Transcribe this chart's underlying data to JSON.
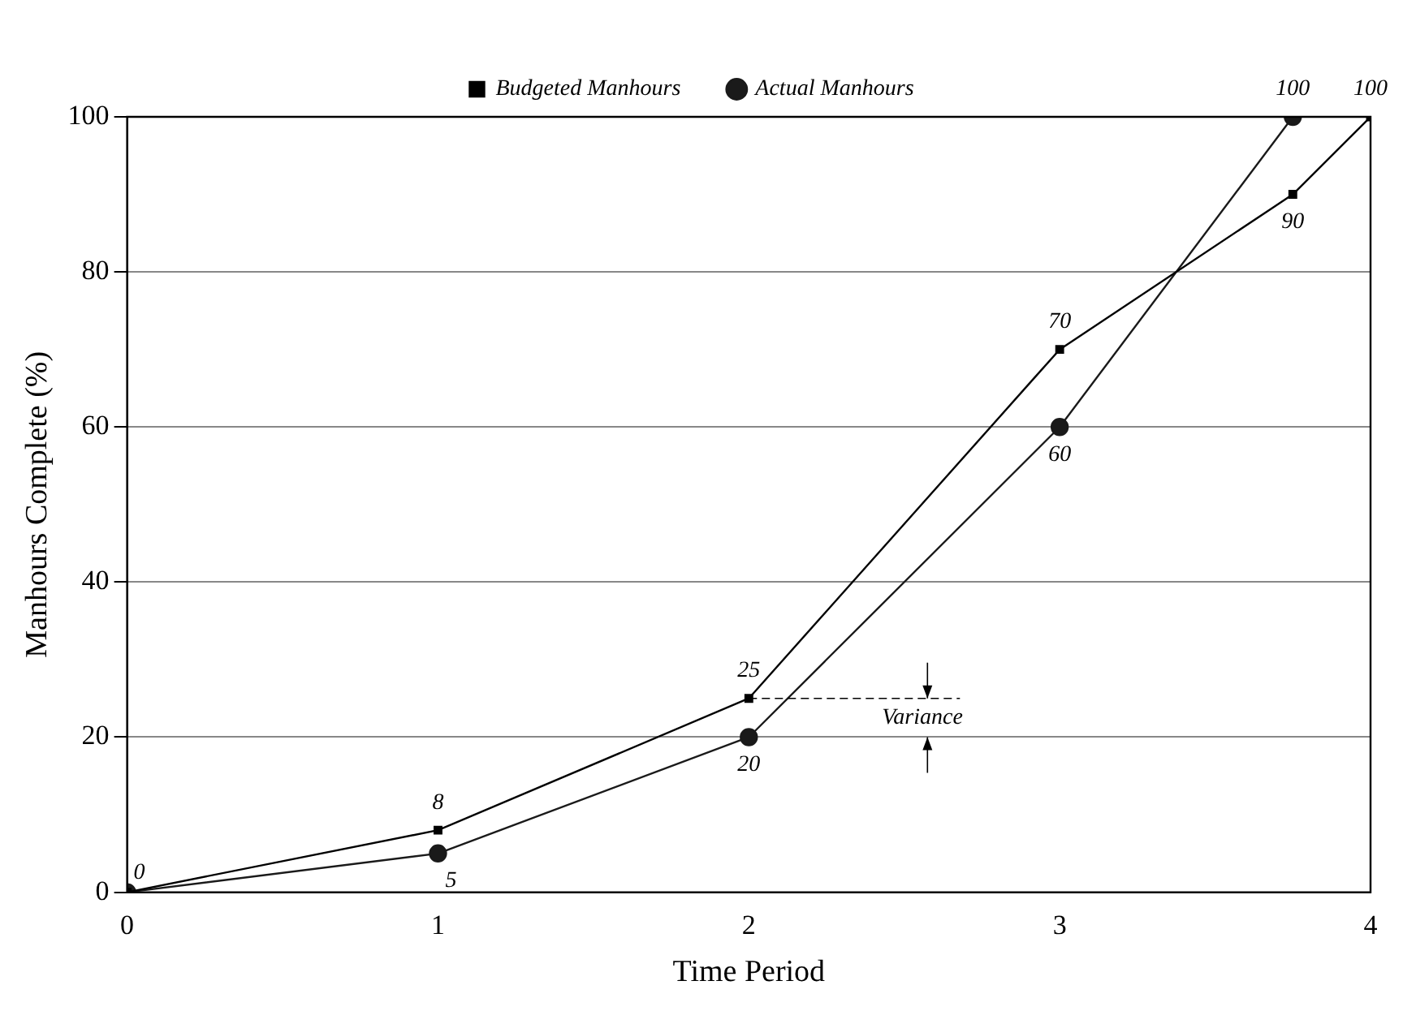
{
  "chart_data": {
    "type": "line",
    "xlabel": "Time Period",
    "ylabel": "Manhours Complete (%)",
    "series": [
      {
        "name": "Budgeted Manhours",
        "color": "#000000",
        "marker": "square",
        "x": [
          0,
          1,
          2,
          3,
          3.75,
          4
        ],
        "values": [
          0,
          8,
          25,
          70,
          90,
          100
        ],
        "value_labels": [
          "0",
          "8",
          "25",
          "70",
          "90",
          "100"
        ]
      },
      {
        "name": "Actual Manhours",
        "color": "#1a1a1a",
        "marker": "circle",
        "x": [
          0,
          1,
          2,
          3,
          3.75
        ],
        "values": [
          0,
          5,
          20,
          60,
          100
        ],
        "value_labels": [
          null,
          "5",
          "20",
          "60",
          "100"
        ]
      }
    ],
    "xlim": [
      0,
      4
    ],
    "xticks": [
      0,
      1,
      2,
      3,
      4
    ],
    "ylim": [
      0,
      100
    ],
    "yticks": [
      0,
      20,
      40,
      60,
      80,
      100
    ],
    "grid": "y",
    "legend": "top",
    "line_style": "solid",
    "annotations": [
      {
        "text": "Variance",
        "x": 2,
        "y": 25
      }
    ]
  }
}
